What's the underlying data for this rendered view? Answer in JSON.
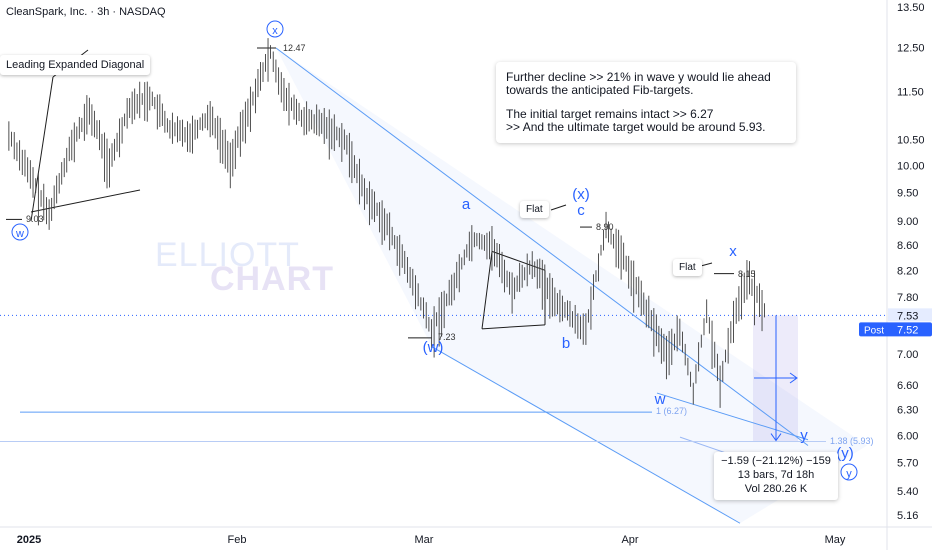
{
  "header": {
    "title": "CleanSpark, Inc. · 3h · NASDAQ"
  },
  "colors": {
    "wave": "#2962ff",
    "channel": "#5b9cf6",
    "candle": "#3d3d3d",
    "price_badge": "#2962ff"
  },
  "watermark": {
    "line1": "ELLIOTT",
    "line2": "CHART"
  },
  "note": {
    "line1": "Further decline >> 21% in wave y would lie ahead\ntowards the anticipated Fib-targets.",
    "line2": "The initial target remains intact >>  6.27\n >> And the ultimate target would be around 5.93."
  },
  "chart_data": {
    "type": "line",
    "title": "CleanSpark, Inc. · 3h · NASDAQ",
    "x_ticks": [
      "2025",
      "Feb",
      "Mar",
      "Apr",
      "May"
    ],
    "y_ticks": [
      13.5,
      12.5,
      11.5,
      10.5,
      10.0,
      9.5,
      9.0,
      8.6,
      8.2,
      7.8,
      7.0,
      6.6,
      6.3,
      6.0,
      5.7,
      5.4,
      5.16
    ],
    "y_tick_labels": [
      "13.50",
      "12.50",
      "11.50",
      "10.50",
      "10.00",
      "9.50",
      "9.00",
      "8.60",
      "8.20",
      "7.80",
      "7.00",
      "6.60",
      "6.30",
      "6.00",
      "5.70",
      "5.40",
      "5.16"
    ],
    "scale": "log",
    "ylim": [
      5.08,
      13.9
    ],
    "grid": false,
    "last_price": "7.53",
    "post_price": "7.52",
    "post_label": "Post",
    "series": [
      {
        "x": [
          "2024-12-29",
          "2025-01-02",
          "2025-01-04",
          "2025-01-07",
          "2025-01-10",
          "2025-01-13",
          "2025-01-16",
          "2025-01-19",
          "2025-01-22",
          "2025-01-25",
          "2025-01-28",
          "2025-01-31",
          "2025-02-03",
          "2025-02-06",
          "2025-02-08",
          "2025-02-11",
          "2025-02-14",
          "2025-02-17",
          "2025-02-20",
          "2025-02-23",
          "2025-02-26",
          "2025-02-28",
          "2025-03-02",
          "2025-03-05",
          "2025-03-08",
          "2025-03-11",
          "2025-03-14",
          "2025-03-17",
          "2025-03-20",
          "2025-03-23",
          "2025-03-25",
          "2025-03-28",
          "2025-03-31",
          "2025-04-03",
          "2025-04-06",
          "2025-04-08",
          "2025-04-10",
          "2025-04-12",
          "2025-04-14",
          "2025-04-16",
          "2025-04-18",
          "2025-04-21"
        ],
        "values": [
          10.6,
          9.6,
          9.1,
          10.3,
          11.1,
          10.0,
          11.2,
          11.4,
          10.7,
          10.6,
          11.0,
          10.1,
          11.2,
          12.4,
          11.4,
          10.9,
          10.8,
          10.5,
          9.5,
          9.0,
          8.3,
          7.8,
          7.3,
          7.9,
          8.7,
          8.6,
          7.9,
          8.3,
          7.8,
          7.5,
          7.3,
          8.9,
          8.3,
          7.6,
          7.0,
          7.3,
          6.5,
          7.6,
          6.6,
          7.5,
          8.1,
          7.52
        ]
      }
    ],
    "wave_labels": [
      {
        "text": "w",
        "price": 9.03,
        "circled": true
      },
      {
        "text": "x",
        "price": 12.47,
        "circled": true
      },
      {
        "text": "(w)",
        "price": 7.23,
        "circled": false
      },
      {
        "text": "a",
        "price": 8.9,
        "circled": false
      },
      {
        "text": "b",
        "price": 7.1,
        "circled": false
      },
      {
        "text": "(x)",
        "price": 9.2,
        "circled": false
      },
      {
        "text": "c",
        "price": 8.9,
        "circled": false
      },
      {
        "text": "x",
        "price": 8.15,
        "circled": false
      },
      {
        "text": "w",
        "price": 6.4,
        "circled": false
      },
      {
        "text": "y",
        "price": 5.93,
        "circled": false
      },
      {
        "text": "(y)",
        "price": 5.7,
        "circled": false
      },
      {
        "text": "y",
        "price": 5.6,
        "circled": true
      }
    ],
    "price_labels": [
      {
        "text": "12.47",
        "price": 12.47
      },
      {
        "text": "9.03",
        "price": 9.03
      },
      {
        "text": "7.23",
        "price": 7.23
      },
      {
        "text": "8.90",
        "price": 8.9
      },
      {
        "text": "8.15",
        "price": 8.15
      },
      {
        "text": "1 (6.27)",
        "price": 6.27
      },
      {
        "text": "1.38 (5.93)",
        "price": 5.93
      }
    ],
    "annotations": [
      "Leading Expanded Diagonal",
      "Flat",
      "Flat"
    ],
    "measure": {
      "line1": "−1.59 (−21.12%) −159",
      "line2": "13 bars, 7d 18h",
      "line3": "Vol 280.26 K"
    }
  }
}
